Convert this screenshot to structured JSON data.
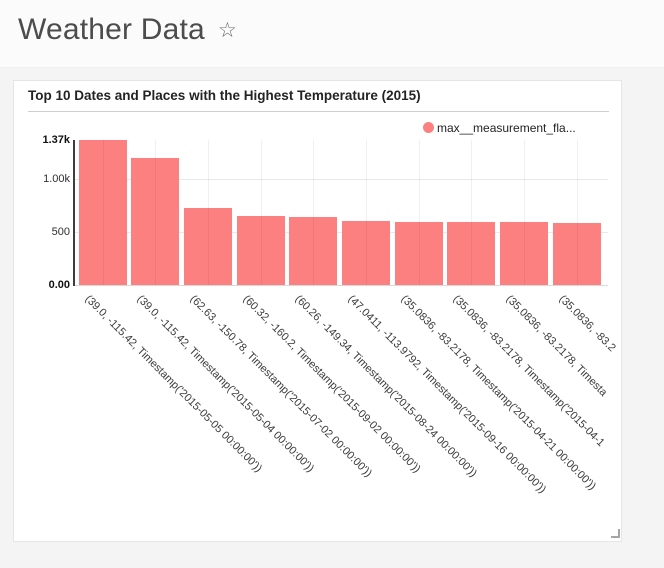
{
  "page": {
    "title": "Weather Data",
    "star_icon": "☆"
  },
  "panel": {
    "title": "Top 10 Dates and Places with the Highest Temperature (2015)",
    "legend": {
      "label": "max__measurement_fla...",
      "marker_color": "#fd8081"
    }
  },
  "chart_data": {
    "type": "bar",
    "title": "Top 10 Dates and Places with the Highest Temperature (2015)",
    "series_name": "max__measurement_fla...",
    "bar_color": "#fd8081",
    "legend_position": "top-right",
    "grid": "on",
    "ylim": [
      0,
      1369
    ],
    "yticks": [
      {
        "label": "0.00",
        "value": 0,
        "bold": true
      },
      {
        "label": "500",
        "value": 500,
        "bold": false
      },
      {
        "label": "1.00k",
        "value": 1000,
        "bold": false
      },
      {
        "label": "1.37k",
        "value": 1369,
        "bold": true
      }
    ],
    "gridline_values": [
      500,
      1000
    ],
    "categories": [
      "(39.0, -115.42, Timestamp('2015-05-05 00:00:00'))",
      "(39.0, -115.42, Timestamp('2015-05-04 00:00:00'))",
      "(62.63, -150.78, Timestamp('2015-07-02 00:00:00'))",
      "(60.32, -160.2, Timestamp('2015-09-02 00:00:00'))",
      "(60.26, -149.34, Timestamp('2015-08-24 00:00:00'))",
      "(47.0411, -113.9792, Timestamp('2015-09-16 00:00:00'))",
      "(35.0836, -83.2178, Timestamp('2015-04-21 00:00:00'))",
      "(35.0836, -83.2178, Timestamp('2015-04-1",
      "(35.0836, -83.2178, Timesta",
      "(35.0836, -83.2"
    ],
    "values": [
      1369,
      1196,
      729,
      652,
      641,
      606,
      593,
      592,
      591,
      590
    ]
  }
}
